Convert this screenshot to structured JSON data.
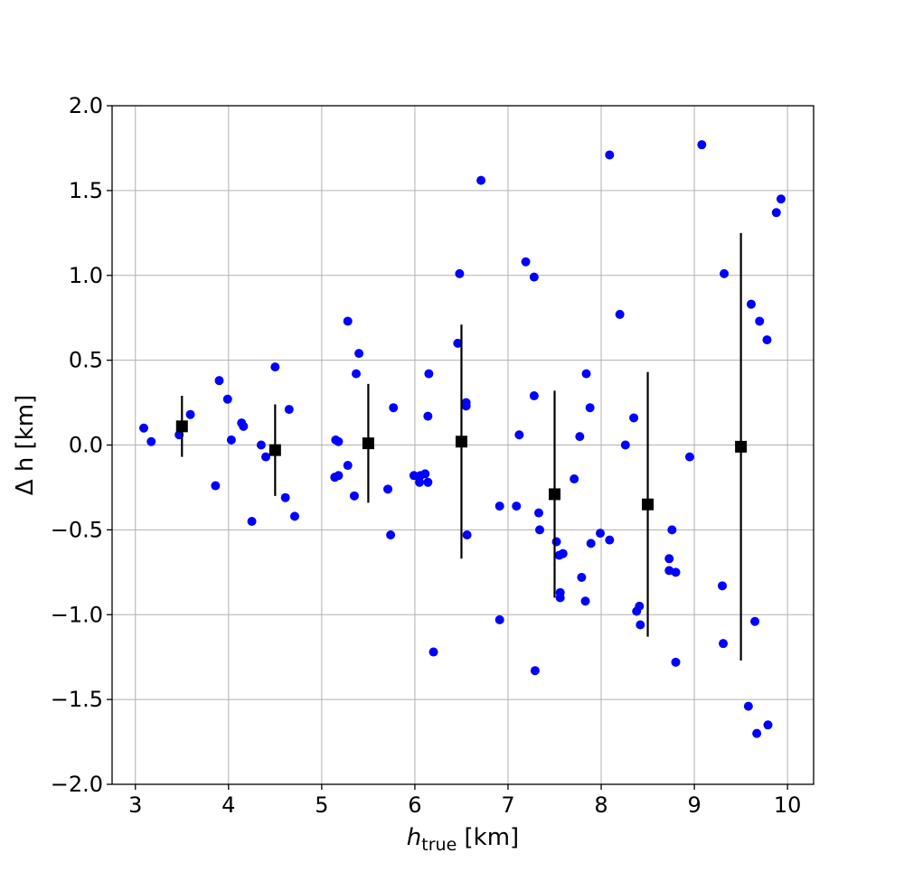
{
  "chart_data": {
    "type": "scatter",
    "xlabel": {
      "main": "h",
      "sub": "true",
      "unit": " [km]"
    },
    "ylabel": "Δ h [km]",
    "xlim": [
      2.75,
      10.28
    ],
    "ylim": [
      -2.0,
      2.0
    ],
    "x_ticks": [
      3,
      4,
      5,
      6,
      7,
      8,
      9,
      10
    ],
    "y_ticks": [
      -2.0,
      -1.5,
      -1.0,
      -0.5,
      0.0,
      0.5,
      1.0,
      1.5,
      2.0
    ],
    "x_tick_labels": [
      "3",
      "4",
      "5",
      "6",
      "7",
      "8",
      "9",
      "10"
    ],
    "y_tick_labels": [
      "−2.0",
      "−1.5",
      "−1.0",
      "−0.5",
      "0.0",
      "0.5",
      "1.0",
      "1.5",
      "2.0"
    ],
    "grid": true,
    "colors": {
      "points": "#0000ff",
      "binned": "#000000",
      "grid": "#b0b0b0"
    },
    "series": [
      {
        "marker": "circle",
        "points": [
          [
            3.09,
            0.1
          ],
          [
            3.17,
            0.02
          ],
          [
            3.47,
            0.06
          ],
          [
            3.59,
            0.18
          ],
          [
            3.86,
            -0.24
          ],
          [
            3.9,
            0.38
          ],
          [
            3.99,
            0.27
          ],
          [
            4.03,
            0.03
          ],
          [
            4.14,
            0.13
          ],
          [
            4.16,
            0.11
          ],
          [
            4.25,
            -0.45
          ],
          [
            4.35,
            0.0
          ],
          [
            4.4,
            -0.07
          ],
          [
            4.5,
            0.46
          ],
          [
            4.61,
            -0.31
          ],
          [
            4.65,
            0.21
          ],
          [
            4.71,
            -0.42
          ],
          [
            5.14,
            -0.19
          ],
          [
            5.15,
            0.03
          ],
          [
            5.18,
            -0.18
          ],
          [
            5.18,
            0.02
          ],
          [
            5.28,
            0.73
          ],
          [
            5.28,
            -0.12
          ],
          [
            5.35,
            -0.3
          ],
          [
            5.37,
            0.42
          ],
          [
            5.4,
            0.54
          ],
          [
            5.71,
            -0.26
          ],
          [
            5.74,
            -0.53
          ],
          [
            5.77,
            0.22
          ],
          [
            5.99,
            -0.18
          ],
          [
            6.05,
            -0.22
          ],
          [
            6.06,
            -0.18
          ],
          [
            6.11,
            -0.17
          ],
          [
            6.14,
            -0.22
          ],
          [
            6.14,
            0.17
          ],
          [
            6.15,
            0.42
          ],
          [
            6.2,
            -1.22
          ],
          [
            6.46,
            0.6
          ],
          [
            6.48,
            1.01
          ],
          [
            6.55,
            0.25
          ],
          [
            6.55,
            0.23
          ],
          [
            6.56,
            -0.53
          ],
          [
            6.71,
            1.56
          ],
          [
            6.91,
            -0.36
          ],
          [
            6.91,
            -1.03
          ],
          [
            7.09,
            -0.36
          ],
          [
            7.12,
            0.06
          ],
          [
            7.19,
            1.08
          ],
          [
            7.28,
            0.29
          ],
          [
            7.28,
            0.99
          ],
          [
            7.29,
            -1.33
          ],
          [
            7.33,
            -0.4
          ],
          [
            7.34,
            -0.5
          ],
          [
            7.52,
            -0.57
          ],
          [
            7.55,
            -0.65
          ],
          [
            7.56,
            -0.87
          ],
          [
            7.56,
            -0.9
          ],
          [
            7.59,
            -0.64
          ],
          [
            7.71,
            -0.2
          ],
          [
            7.77,
            0.05
          ],
          [
            7.79,
            -0.78
          ],
          [
            7.83,
            -0.92
          ],
          [
            7.84,
            0.42
          ],
          [
            7.88,
            0.22
          ],
          [
            7.89,
            -0.58
          ],
          [
            7.99,
            -0.52
          ],
          [
            8.09,
            -0.56
          ],
          [
            8.09,
            1.71
          ],
          [
            8.2,
            0.77
          ],
          [
            8.26,
            0.0
          ],
          [
            8.35,
            0.16
          ],
          [
            8.38,
            -0.98
          ],
          [
            8.41,
            -0.95
          ],
          [
            8.42,
            -1.06
          ],
          [
            8.73,
            -0.67
          ],
          [
            8.73,
            -0.74
          ],
          [
            8.76,
            -0.5
          ],
          [
            8.8,
            -0.75
          ],
          [
            8.8,
            -1.28
          ],
          [
            8.95,
            -0.07
          ],
          [
            9.08,
            1.77
          ],
          [
            9.3,
            -0.83
          ],
          [
            9.31,
            -1.17
          ],
          [
            9.32,
            1.01
          ],
          [
            9.58,
            -1.54
          ],
          [
            9.61,
            0.83
          ],
          [
            9.65,
            -1.04
          ],
          [
            9.67,
            -1.7
          ],
          [
            9.7,
            0.73
          ],
          [
            9.78,
            0.62
          ],
          [
            9.79,
            -1.65
          ],
          [
            9.88,
            1.37
          ],
          [
            9.93,
            1.45
          ]
        ]
      },
      {
        "marker": "square",
        "error_bars": true,
        "points": [
          {
            "x": 3.5,
            "y": 0.11,
            "err": 0.18
          },
          {
            "x": 4.5,
            "y": -0.03,
            "err": 0.27
          },
          {
            "x": 5.5,
            "y": 0.01,
            "err": 0.35
          },
          {
            "x": 6.5,
            "y": 0.02,
            "err": 0.69
          },
          {
            "x": 7.5,
            "y": -0.29,
            "err": 0.61
          },
          {
            "x": 8.5,
            "y": -0.35,
            "err": 0.78
          },
          {
            "x": 9.5,
            "y": -0.01,
            "err": 1.26
          }
        ]
      }
    ]
  }
}
